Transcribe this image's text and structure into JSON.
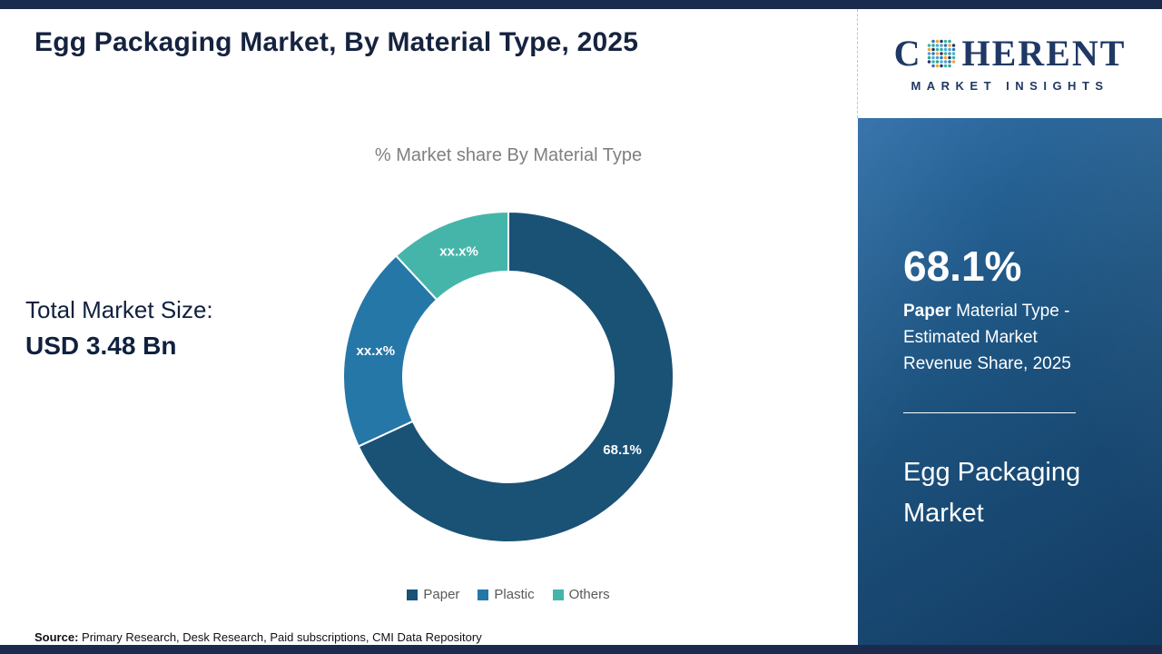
{
  "page": {
    "title": "Egg Packaging Market, By Material Type, 2025",
    "source_label": "Source:",
    "source_text": " Primary Research, Desk Research, Paid subscriptions, CMI Data Repository"
  },
  "logo": {
    "brand_c": "C",
    "brand_rest": "HERENT",
    "subtitle": "MARKET INSIGHTS",
    "globe_colors": [
      "#1f3864",
      "#2e75b6",
      "#41aee0",
      "#3fb0a5",
      "#f0a43c",
      "#5b9bd5",
      "#2aa8a0"
    ]
  },
  "left_panel": {
    "total_label": "Total Market Size:",
    "total_value": "USD 3.48 Bn"
  },
  "chart_data": {
    "type": "pie",
    "donut": true,
    "title": "% Market share By Material Type",
    "categories": [
      "Paper",
      "Plastic",
      "Others"
    ],
    "values": [
      68.1,
      20.0,
      11.9
    ],
    "labels": [
      "68.1%",
      "xx.x%",
      "xx.x%"
    ],
    "colors": [
      "#1a5276",
      "#2577a8",
      "#45b5aa"
    ],
    "legend_position": "bottom"
  },
  "sidebar": {
    "stat_value": "68.1%",
    "stat_desc_bold": "Paper",
    "stat_desc_rest": " Material Type - Estimated Market Revenue Share, 2025",
    "market_name": "Egg Packaging Market",
    "panel_color": "#1d537f"
  },
  "accent_bar_color": "#1b2b4d"
}
